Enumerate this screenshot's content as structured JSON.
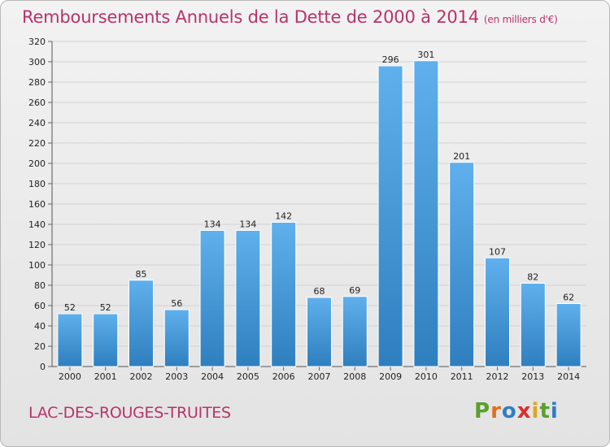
{
  "header": {
    "title": "Remboursements Annuels de la Dette de 2000 à 2014",
    "unit": "(en milliers d'€)"
  },
  "footer": {
    "commune": "LAC-DES-ROUGES-TRUITES",
    "logo_text": "Proxiti",
    "logo_letters": [
      "P",
      "r",
      "o",
      "x",
      "i",
      "t",
      "i"
    ],
    "logo_colors": [
      "#5aa02c",
      "#e0701c",
      "#2f7fc1",
      "#d9302b",
      "#e0a51c",
      "#5aa02c",
      "#2f7fc1"
    ]
  },
  "chart_data": {
    "type": "bar",
    "categories": [
      "2000",
      "2001",
      "2002",
      "2003",
      "2004",
      "2005",
      "2006",
      "2007",
      "2008",
      "2009",
      "2010",
      "2011",
      "2012",
      "2013",
      "2014"
    ],
    "values": [
      52,
      52,
      85,
      56,
      134,
      134,
      142,
      68,
      69,
      296,
      301,
      201,
      107,
      82,
      62
    ],
    "ylim": [
      0,
      320
    ],
    "yticks": [
      0,
      20,
      40,
      60,
      80,
      100,
      120,
      140,
      160,
      180,
      200,
      220,
      240,
      260,
      280,
      300,
      320
    ],
    "grid": true,
    "bar_color_top": "#5fb0ec",
    "bar_color_bottom": "#2f7fbf"
  }
}
